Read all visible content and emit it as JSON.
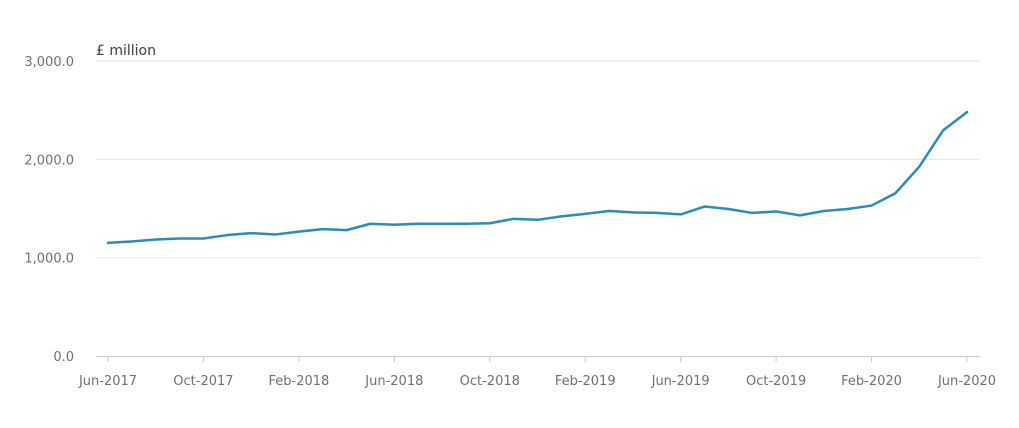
{
  "chart_data": {
    "type": "line",
    "unit_label": "£ million",
    "ylim": [
      0,
      3000
    ],
    "y_ticks": [
      {
        "value": 0,
        "label": "0.0"
      },
      {
        "value": 1000,
        "label": "1,000.0"
      },
      {
        "value": 2000,
        "label": "2,000.0"
      },
      {
        "value": 3000,
        "label": "3,000.0"
      }
    ],
    "x_tick_labels": [
      "Jun-2017",
      "Oct-2017",
      "Feb-2018",
      "Jun-2018",
      "Oct-2018",
      "Feb-2019",
      "Jun-2019",
      "Oct-2019",
      "Feb-2020",
      "Jun-2020"
    ],
    "grid": true,
    "legend": "none",
    "colors": {
      "line": "#2e8bb5",
      "grid": "#e6e6e6",
      "axis": "#c8c8c8"
    },
    "x": [
      "Jun-2017",
      "Jul-2017",
      "Aug-2017",
      "Sep-2017",
      "Oct-2017",
      "Nov-2017",
      "Dec-2017",
      "Jan-2018",
      "Feb-2018",
      "Mar-2018",
      "Apr-2018",
      "May-2018",
      "Jun-2018",
      "Jul-2018",
      "Aug-2018",
      "Sep-2018",
      "Oct-2018",
      "Nov-2018",
      "Dec-2018",
      "Jan-2019",
      "Feb-2019",
      "Mar-2019",
      "Apr-2019",
      "May-2019",
      "Jun-2019",
      "Jul-2019",
      "Aug-2019",
      "Sep-2019",
      "Oct-2019",
      "Nov-2019",
      "Dec-2019",
      "Jan-2020",
      "Feb-2020",
      "Mar-2020",
      "Apr-2020",
      "May-2020",
      "Jun-2020"
    ],
    "series": [
      {
        "values": [
          1150,
          1165,
          1185,
          1195,
          1195,
          1230,
          1250,
          1235,
          1265,
          1290,
          1280,
          1345,
          1335,
          1345,
          1345,
          1345,
          1350,
          1395,
          1385,
          1420,
          1445,
          1475,
          1460,
          1455,
          1440,
          1520,
          1495,
          1455,
          1470,
          1430,
          1475,
          1495,
          1530,
          1655,
          1925,
          2295,
          2480
        ]
      }
    ]
  }
}
